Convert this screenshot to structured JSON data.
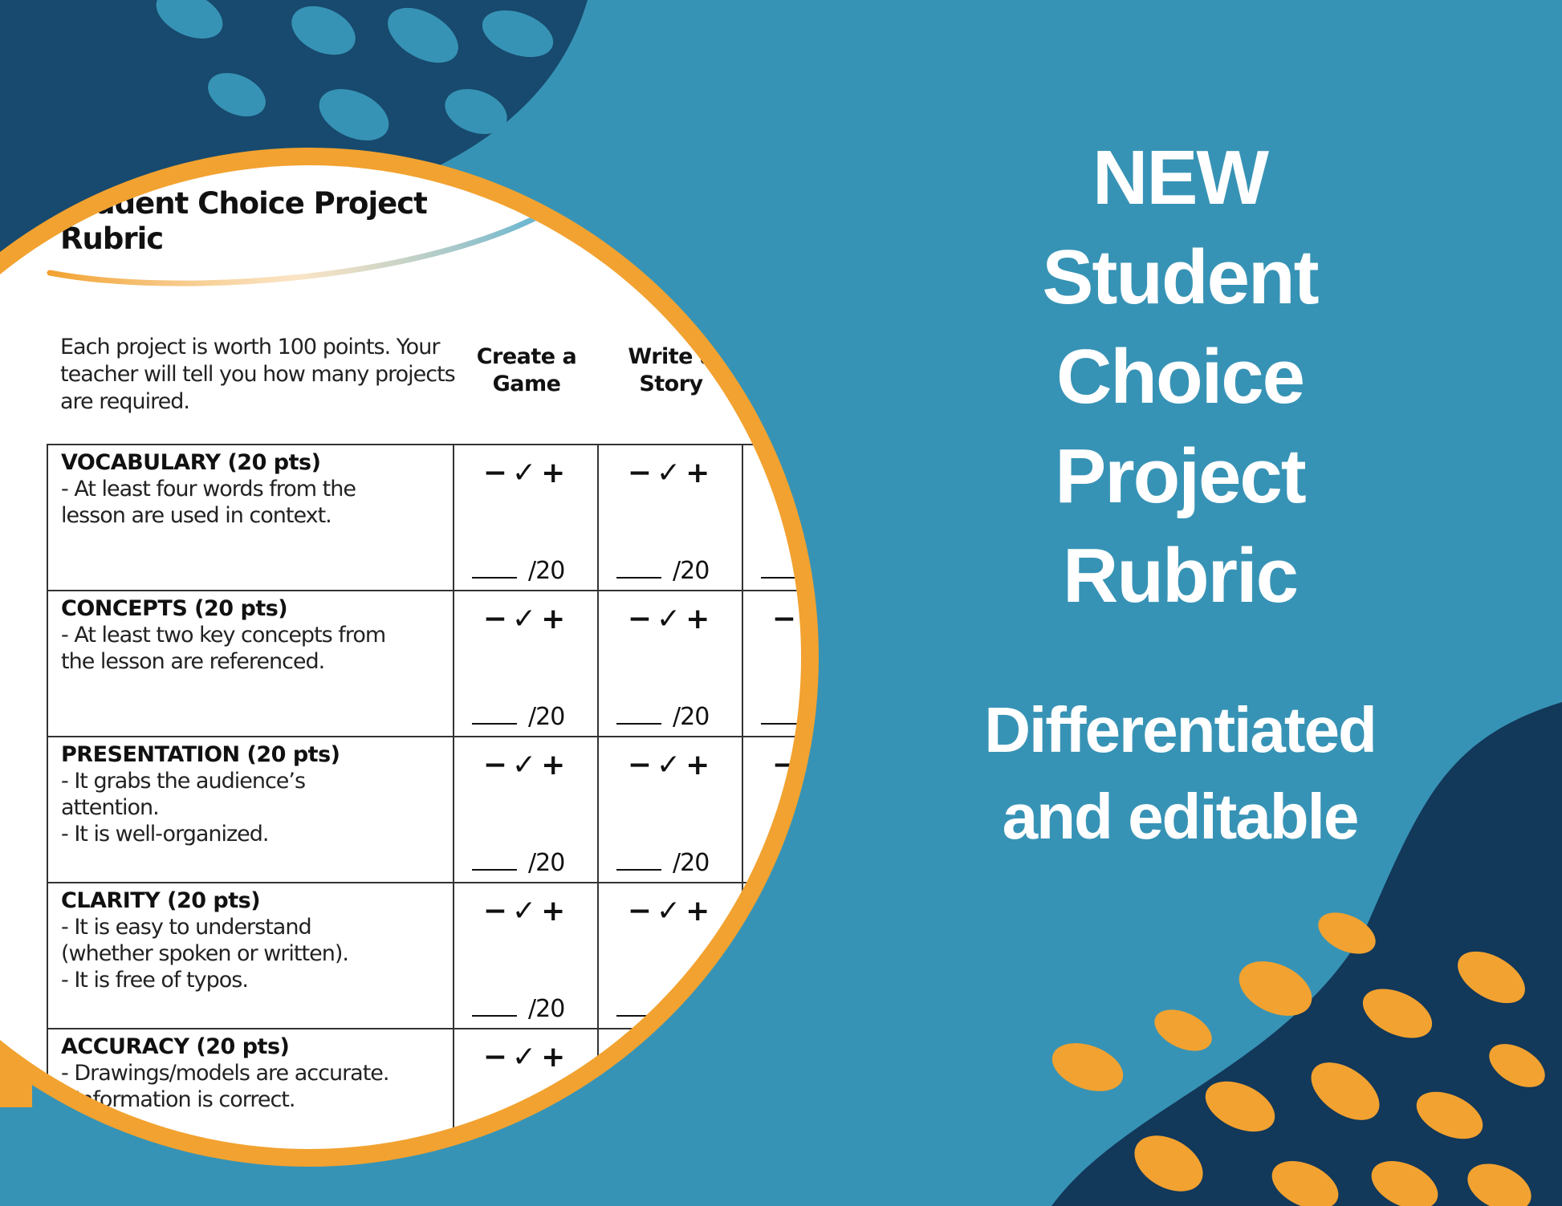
{
  "colors": {
    "background": "#3793b5",
    "navy": "#174a6e",
    "dark_navy": "#12385a",
    "orange": "#f2a230",
    "text_light": "#ffffff"
  },
  "headline": {
    "lines": [
      "NEW",
      "Student",
      "Choice",
      "Project",
      "Rubric"
    ]
  },
  "subheadline": {
    "lines": [
      "Differentiated",
      "and editable"
    ]
  },
  "document": {
    "title": "Student Choice Project\nRubric",
    "intro": "Each project is worth 100 points. Your teacher will tell you how many projects are required.",
    "columns": [
      "Create a\nGame",
      "Write a\nStory",
      ""
    ],
    "marks": "−✓+",
    "score_suffix": "/20",
    "rows": [
      {
        "heading": "VOCABULARY (20 pts)",
        "text": "- At least four words from the\n   lesson are used in context."
      },
      {
        "heading": "CONCEPTS (20 pts)",
        "text": "- At least two key concepts from\n   the lesson are referenced."
      },
      {
        "heading": "PRESENTATION (20 pts)",
        "text": "-  It grabs the audience’s\n    attention.\n-  It is well-organized."
      },
      {
        "heading": "CLARITY (20 pts)",
        "text": "- It is easy to understand\n  (whether spoken or written).\n- It is free of typos."
      },
      {
        "heading": "ACCURACY (20 pts)",
        "text": "- Drawings/models are accurate.\n- Information is correct."
      }
    ]
  }
}
